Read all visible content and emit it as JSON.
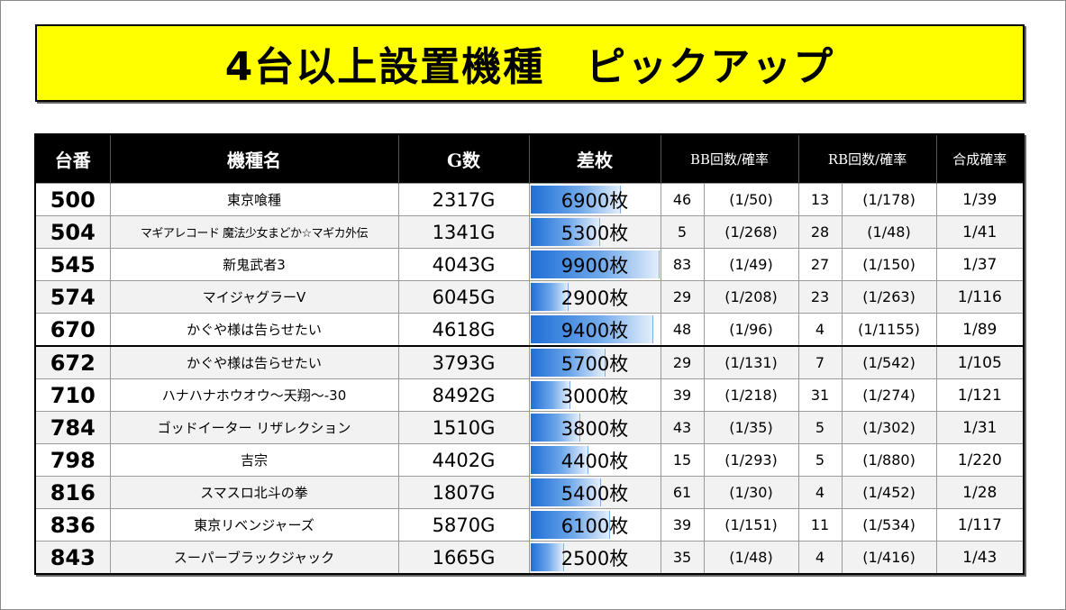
{
  "title": "4台以上設置機種　ピックアップ",
  "headers": {
    "no": "台番",
    "name": "機種名",
    "games": "G数",
    "diff": "差枚",
    "bb": "BB回数/確率",
    "rb": "RB回数/確率",
    "total": "合成確率"
  },
  "diff_max": 10000,
  "rows": [
    {
      "no": "500",
      "name": "東京喰種",
      "games": "2317G",
      "diff": "6900枚",
      "diff_value": 6900,
      "bb": "46",
      "bb_rate": "(1/50)",
      "rb": "13",
      "rb_rate": "(1/178)",
      "total": "1/39"
    },
    {
      "no": "504",
      "name": "マギアレコード 魔法少女まどか☆マギカ外伝",
      "games": "1341G",
      "diff": "5300枚",
      "diff_value": 5300,
      "bb": "5",
      "bb_rate": "(1/268)",
      "rb": "28",
      "rb_rate": "(1/48)",
      "total": "1/41"
    },
    {
      "no": "545",
      "name": "新鬼武者3",
      "games": "4043G",
      "diff": "9900枚",
      "diff_value": 9900,
      "bb": "83",
      "bb_rate": "(1/49)",
      "rb": "27",
      "rb_rate": "(1/150)",
      "total": "1/37"
    },
    {
      "no": "574",
      "name": "マイジャグラーV",
      "games": "6045G",
      "diff": "2900枚",
      "diff_value": 2900,
      "bb": "29",
      "bb_rate": "(1/208)",
      "rb": "23",
      "rb_rate": "(1/263)",
      "total": "1/116"
    },
    {
      "no": "670",
      "name": "かぐや様は告らせたい",
      "games": "4618G",
      "diff": "9400枚",
      "diff_value": 9400,
      "bb": "48",
      "bb_rate": "(1/96)",
      "rb": "4",
      "rb_rate": "(1/1155)",
      "total": "1/89"
    },
    {
      "no": "672",
      "name": "かぐや様は告らせたい",
      "games": "3793G",
      "diff": "5700枚",
      "diff_value": 5700,
      "bb": "29",
      "bb_rate": "(1/131)",
      "rb": "7",
      "rb_rate": "(1/542)",
      "total": "1/105"
    },
    {
      "no": "710",
      "name": "ハナハナホウオウ～天翔～-30",
      "games": "8492G",
      "diff": "3000枚",
      "diff_value": 3000,
      "bb": "39",
      "bb_rate": "(1/218)",
      "rb": "31",
      "rb_rate": "(1/274)",
      "total": "1/121"
    },
    {
      "no": "784",
      "name": "ゴッドイーター リザレクション",
      "games": "1510G",
      "diff": "3800枚",
      "diff_value": 3800,
      "bb": "43",
      "bb_rate": "(1/35)",
      "rb": "5",
      "rb_rate": "(1/302)",
      "total": "1/31"
    },
    {
      "no": "798",
      "name": "吉宗",
      "games": "4402G",
      "diff": "4400枚",
      "diff_value": 4400,
      "bb": "15",
      "bb_rate": "(1/293)",
      "rb": "5",
      "rb_rate": "(1/880)",
      "total": "1/220"
    },
    {
      "no": "816",
      "name": "スマスロ北斗の拳",
      "games": "1807G",
      "diff": "5400枚",
      "diff_value": 5400,
      "bb": "61",
      "bb_rate": "(1/30)",
      "rb": "4",
      "rb_rate": "(1/452)",
      "total": "1/28"
    },
    {
      "no": "836",
      "name": "東京リベンジャーズ",
      "games": "5870G",
      "diff": "6100枚",
      "diff_value": 6100,
      "bb": "39",
      "bb_rate": "(1/151)",
      "rb": "11",
      "rb_rate": "(1/534)",
      "total": "1/117"
    },
    {
      "no": "843",
      "name": "スーパーブラックジャック",
      "games": "1665G",
      "diff": "2500枚",
      "diff_value": 2500,
      "bb": "35",
      "bb_rate": "(1/48)",
      "rb": "4",
      "rb_rate": "(1/416)",
      "total": "1/43"
    }
  ]
}
